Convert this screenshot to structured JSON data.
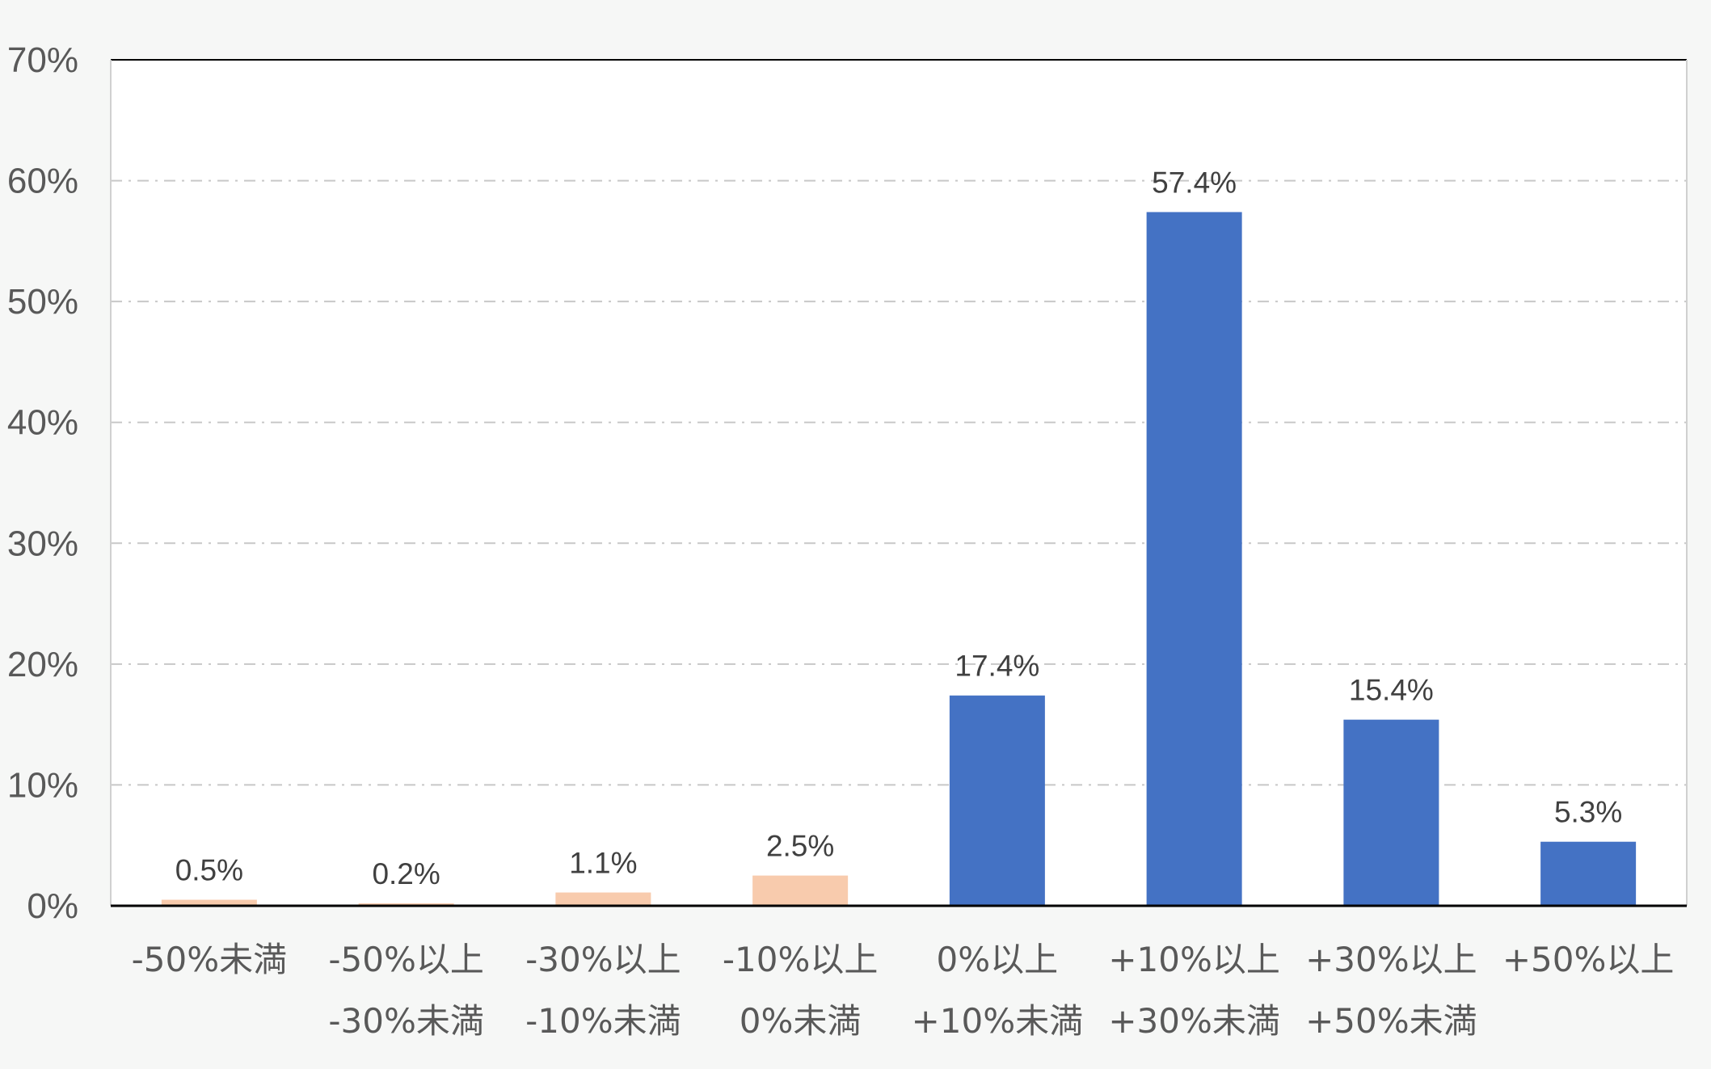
{
  "chart_data": {
    "type": "bar",
    "title": "",
    "xlabel": "",
    "ylabel": "",
    "ylim": [
      0,
      70
    ],
    "yticks": [
      0,
      10,
      20,
      30,
      40,
      50,
      60,
      70
    ],
    "ytick_labels": [
      "0%",
      "10%",
      "20%",
      "30%",
      "40%",
      "50%",
      "60%",
      "70%"
    ],
    "grid": true,
    "legend": "none",
    "categories": [
      [
        "-50%未満"
      ],
      [
        "-50%以上",
        "-30%未満"
      ],
      [
        "-30%以上",
        "-10%未満"
      ],
      [
        "-10%以上",
        "0%未満"
      ],
      [
        "0%以上",
        "+10%未満"
      ],
      [
        "+10%以上",
        "+30%未満"
      ],
      [
        "+30%以上",
        "+50%未満"
      ],
      [
        "+50%以上"
      ]
    ],
    "values": [
      0.5,
      0.2,
      1.1,
      2.5,
      17.4,
      57.4,
      15.4,
      5.3
    ],
    "data_labels": [
      "0.5%",
      "0.2%",
      "1.1%",
      "2.5%",
      "17.4%",
      "57.4%",
      "15.4%",
      "5.3%"
    ],
    "colors": {
      "negative": "#f8cbad",
      "positive": "#4472c4",
      "gridline": "#c8c8c8",
      "axis": "#000000",
      "plot_background": "#ffffff"
    },
    "bar_colors": [
      "negative",
      "negative",
      "negative",
      "negative",
      "positive",
      "positive",
      "positive",
      "positive"
    ]
  }
}
